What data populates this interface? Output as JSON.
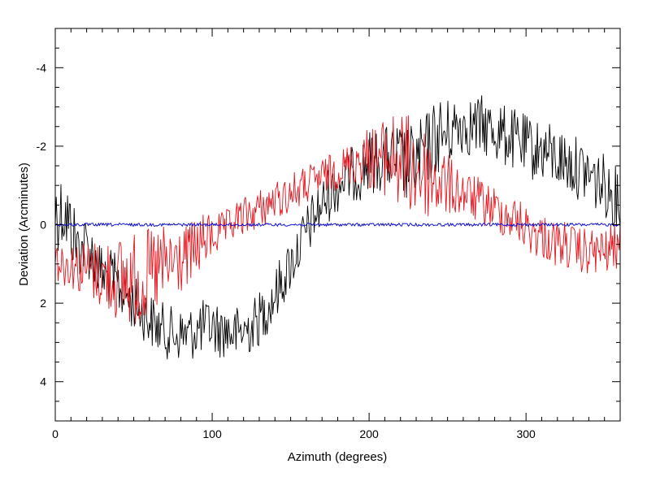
{
  "chart_data": {
    "type": "line",
    "title": "",
    "xlabel": "Azimuth (degrees)",
    "ylabel": "Deviation (Arcminutes)",
    "xlim": [
      0,
      360
    ],
    "ylim": [
      -5,
      5
    ],
    "y_inverted": true,
    "grid": false,
    "x_ticks": [
      0,
      100,
      200,
      300
    ],
    "x_tick_labels": [
      "0",
      "100",
      "200",
      "300"
    ],
    "y_ticks": [
      -4,
      -2,
      0,
      2,
      4
    ],
    "y_tick_labels": [
      "-4",
      "-2",
      "0",
      "2",
      "4"
    ],
    "x_minor_step": 10,
    "y_minor_step": 0.5,
    "series": [
      {
        "color": "#000000",
        "x": [
          0,
          5,
          10,
          15,
          20,
          25,
          30,
          35,
          40,
          45,
          50,
          55,
          60,
          65,
          70,
          75,
          80,
          85,
          90,
          95,
          100,
          105,
          110,
          115,
          120,
          125,
          130,
          135,
          140,
          145,
          150,
          155,
          160,
          165,
          170,
          175,
          180,
          185,
          190,
          195,
          200,
          205,
          210,
          215,
          220,
          225,
          230,
          235,
          240,
          245,
          250,
          255,
          260,
          265,
          270,
          275,
          280,
          285,
          290,
          295,
          300,
          305,
          310,
          315,
          320,
          325,
          330,
          335,
          340,
          345,
          350,
          355,
          360
        ],
        "values": [
          -0.3,
          -0.4,
          0.1,
          0.6,
          0.5,
          0.9,
          1.3,
          1.4,
          1.6,
          1.8,
          2.0,
          2.2,
          2.4,
          2.6,
          2.7,
          2.8,
          2.8,
          2.8,
          2.7,
          2.6,
          2.6,
          2.7,
          2.7,
          2.8,
          2.7,
          2.6,
          2.4,
          2.1,
          1.8,
          1.4,
          1.0,
          0.6,
          0.2,
          -0.2,
          -0.5,
          -0.8,
          -1.0,
          -1.2,
          -1.3,
          -1.4,
          -1.6,
          -1.6,
          -1.7,
          -1.7,
          -1.6,
          -1.5,
          -1.6,
          -1.8,
          -2.1,
          -2.3,
          -2.3,
          -2.5,
          -2.6,
          -2.5,
          -2.5,
          -2.5,
          -2.4,
          -2.3,
          -2.2,
          -2.1,
          -2.0,
          -1.9,
          -1.9,
          -1.8,
          -1.7,
          -1.6,
          -1.5,
          -1.4,
          -1.3,
          -1.1,
          -1.0,
          -0.8,
          -0.6
        ],
        "noise": [
          1.0,
          1.0,
          1.0,
          0.8,
          0.8,
          0.8,
          0.8,
          0.8,
          0.8,
          0.7,
          0.7,
          0.7,
          0.7,
          0.7,
          0.7,
          0.7,
          0.7,
          0.7,
          0.7,
          0.7,
          0.7,
          0.7,
          0.7,
          0.7,
          0.7,
          0.7,
          0.7,
          0.7,
          0.7,
          0.7,
          0.7,
          0.7,
          0.7,
          0.7,
          0.7,
          0.7,
          0.7,
          0.7,
          0.7,
          0.8,
          0.8,
          0.8,
          0.8,
          0.9,
          1.0,
          1.0,
          1.0,
          1.0,
          1.0,
          1.0,
          0.9,
          0.8,
          0.8,
          0.8,
          0.8,
          0.8,
          0.8,
          0.8,
          0.8,
          0.8,
          0.8,
          0.8,
          0.8,
          0.8,
          0.8,
          0.8,
          0.8,
          0.8,
          0.8,
          0.8,
          0.8,
          0.8,
          0.8
        ]
      },
      {
        "color": "#e8141c",
        "x": [
          0,
          5,
          10,
          15,
          20,
          25,
          30,
          35,
          40,
          45,
          50,
          55,
          60,
          65,
          70,
          75,
          80,
          85,
          90,
          95,
          100,
          105,
          110,
          115,
          120,
          125,
          130,
          135,
          140,
          145,
          150,
          155,
          160,
          165,
          170,
          175,
          180,
          185,
          190,
          195,
          200,
          205,
          210,
          215,
          220,
          225,
          230,
          235,
          240,
          245,
          250,
          255,
          260,
          265,
          270,
          275,
          280,
          285,
          290,
          295,
          300,
          305,
          310,
          315,
          320,
          325,
          330,
          335,
          340,
          345,
          350,
          355,
          360
        ],
        "values": [
          0.8,
          1.0,
          1.0,
          1.1,
          1.1,
          1.2,
          1.3,
          1.3,
          1.4,
          1.4,
          1.4,
          1.4,
          1.3,
          1.2,
          1.1,
          1.0,
          0.9,
          0.8,
          0.6,
          0.4,
          0.3,
          0.2,
          0.1,
          -0.1,
          -0.2,
          -0.3,
          -0.4,
          -0.5,
          -0.6,
          -0.7,
          -0.8,
          -0.9,
          -1.0,
          -1.1,
          -1.2,
          -1.3,
          -1.4,
          -1.5,
          -1.6,
          -1.7,
          -1.7,
          -1.7,
          -1.7,
          -1.7,
          -1.6,
          -1.5,
          -1.4,
          -1.3,
          -1.2,
          -1.1,
          -1.0,
          -0.9,
          -0.8,
          -0.7,
          -0.6,
          -0.5,
          -0.4,
          -0.3,
          -0.2,
          -0.1,
          0.1,
          0.2,
          0.3,
          0.4,
          0.5,
          0.5,
          0.6,
          0.7,
          0.7,
          0.7,
          0.7,
          0.6,
          0.5
        ],
        "noise": [
          0.6,
          0.6,
          0.6,
          0.7,
          0.7,
          0.8,
          0.9,
          1.0,
          1.1,
          1.2,
          1.2,
          1.2,
          1.2,
          1.2,
          1.1,
          1.0,
          0.9,
          0.8,
          0.8,
          0.7,
          0.6,
          0.5,
          0.5,
          0.5,
          0.5,
          0.5,
          0.5,
          0.5,
          0.5,
          0.5,
          0.5,
          0.5,
          0.5,
          0.5,
          0.5,
          0.5,
          0.5,
          0.5,
          0.6,
          0.7,
          0.8,
          0.9,
          1.0,
          1.2,
          1.3,
          1.3,
          1.3,
          1.2,
          1.1,
          1.0,
          0.8,
          0.7,
          0.6,
          0.6,
          0.6,
          0.6,
          0.6,
          0.6,
          0.6,
          0.6,
          0.6,
          0.6,
          0.6,
          0.6,
          0.6,
          0.6,
          0.6,
          0.6,
          0.6,
          0.6,
          0.6,
          0.6,
          0.6
        ]
      },
      {
        "color": "#1010d0",
        "x": [
          0,
          360
        ],
        "values": [
          0.0,
          0.0
        ],
        "noise": [
          0.04,
          0.04
        ]
      }
    ]
  }
}
